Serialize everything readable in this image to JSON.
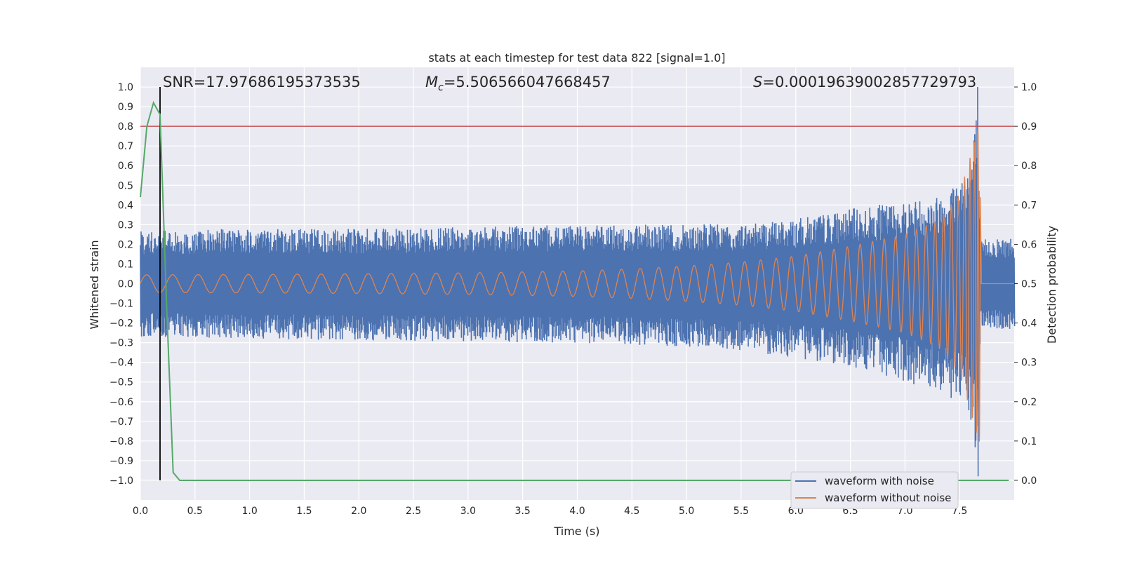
{
  "chart_data": {
    "type": "line",
    "title": "stats at each timestep for test data 822 [signal=1.0]",
    "xlabel": "Time (s)",
    "ylabel": "Whitened strain",
    "ylabel_right": "Detection probability",
    "xlim": [
      0.0,
      8.0
    ],
    "ylim": [
      -1.1,
      1.1
    ],
    "ylim_right": [
      -0.05,
      1.05
    ],
    "x_ticks": [
      "0.0",
      "0.5",
      "1.0",
      "1.5",
      "2.0",
      "2.5",
      "3.0",
      "3.5",
      "4.0",
      "4.5",
      "5.0",
      "5.5",
      "6.0",
      "6.5",
      "7.0",
      "7.5"
    ],
    "y_ticks": [
      "1.0",
      "0.9",
      "0.8",
      "0.7",
      "0.6",
      "0.5",
      "0.4",
      "0.3",
      "0.2",
      "0.1",
      "0.0",
      "−0.1",
      "−0.2",
      "−0.3",
      "−0.4",
      "−0.5",
      "−0.6",
      "−0.7",
      "−0.8",
      "−0.9",
      "−1.0"
    ],
    "y_ticks_right": [
      "1.0",
      "0.9",
      "0.8",
      "0.7",
      "0.6",
      "0.5",
      "0.4",
      "0.3",
      "0.2",
      "0.1",
      "0.0"
    ],
    "grid": true,
    "legend": {
      "placement": "lower-right",
      "entries": [
        "waveform with noise",
        "waveform without noise"
      ]
    },
    "annotations": {
      "snr": "SNR=17.97686195373535",
      "mc_symbol": "M",
      "mc_sub": "c",
      "mc_value": "=5.506566047668457",
      "s_symbol": "S",
      "s_value": "=0.0001963900285772979​3"
    },
    "threshold_line": {
      "axis": "right",
      "value": 0.9,
      "color": "#c44e52"
    },
    "vertical_marker": {
      "x": 0.18,
      "color": "#000000"
    },
    "series": [
      {
        "name": "waveform with noise",
        "axis": "left",
        "color": "#4c72b0",
        "description": "noisy whitened strain, envelope approx",
        "envelope": {
          "x": [
            0.0,
            1.0,
            2.0,
            3.0,
            4.0,
            5.0,
            5.5,
            6.0,
            6.5,
            7.0,
            7.3,
            7.5,
            7.6,
            7.66,
            7.69,
            7.7,
            8.0
          ],
          "upper": [
            0.27,
            0.28,
            0.28,
            0.29,
            0.3,
            0.3,
            0.31,
            0.33,
            0.38,
            0.42,
            0.45,
            0.55,
            0.64,
            0.9,
            0.2,
            0.23,
            0.24
          ],
          "lower": [
            -0.27,
            -0.28,
            -0.29,
            -0.3,
            -0.3,
            -0.32,
            -0.34,
            -0.38,
            -0.42,
            -0.5,
            -0.55,
            -0.62,
            -0.72,
            -0.98,
            -0.22,
            -0.23,
            -0.24
          ]
        }
      },
      {
        "name": "waveform without noise",
        "axis": "left",
        "color": "#dd8452",
        "description": "chirp signal amplitude envelope",
        "envelope": {
          "x": [
            0.0,
            1.0,
            2.0,
            3.0,
            4.0,
            4.5,
            5.0,
            5.5,
            6.0,
            6.5,
            7.0,
            7.3,
            7.5,
            7.65,
            7.69,
            7.7,
            8.0
          ],
          "amplitude": [
            0.045,
            0.047,
            0.05,
            0.055,
            0.065,
            0.075,
            0.09,
            0.11,
            0.14,
            0.19,
            0.25,
            0.32,
            0.45,
            0.75,
            0.82,
            0.0,
            0.0
          ]
        }
      },
      {
        "name": "detection probability",
        "axis": "right",
        "color": "#55a868",
        "x": [
          0.0,
          0.06,
          0.12,
          0.18,
          0.24,
          0.3,
          0.36,
          0.5,
          1.0,
          2.0,
          3.0,
          4.0,
          5.0,
          6.0,
          7.0,
          7.5,
          7.95
        ],
        "values": [
          0.72,
          0.9,
          0.96,
          0.93,
          0.45,
          0.02,
          0.0,
          0.0,
          0.0,
          0.0,
          0.0,
          0.0,
          0.0,
          0.0,
          0.0,
          0.0,
          0.0
        ]
      }
    ]
  }
}
